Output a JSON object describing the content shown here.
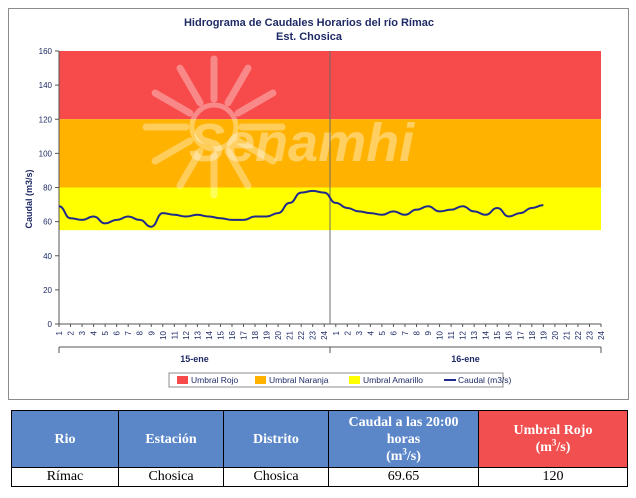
{
  "chart_data": {
    "type": "line",
    "title": "Hidrograma de Caudales Horarios del río Rímac",
    "subtitle": "Est. Chosica",
    "ylabel": "Caudal  (m3/s)",
    "ylim": [
      0,
      160
    ],
    "yticks": [
      0,
      20,
      40,
      60,
      80,
      100,
      120,
      140,
      160
    ],
    "hour_labels": [
      "1",
      "2",
      "3",
      "4",
      "5",
      "6",
      "7",
      "8",
      "9",
      "10",
      "11",
      "12",
      "13",
      "14",
      "15",
      "16",
      "17",
      "18",
      "19",
      "20",
      "21",
      "22",
      "23",
      "24"
    ],
    "days": [
      "15-ene",
      "16-ene"
    ],
    "thresholds": [
      {
        "name": "Umbral Rojo",
        "from": 120,
        "to": 160,
        "color": "#f74a4a"
      },
      {
        "name": "Umbral Naranja",
        "from": 80,
        "to": 120,
        "color": "#ffb300"
      },
      {
        "name": "Umbral Amarillo",
        "from": 55,
        "to": 80,
        "color": "#ffff00"
      }
    ],
    "series": [
      {
        "name": "Caudal (m3/s)",
        "color": "#1f2a8c",
        "values": [
          69,
          62,
          61,
          63,
          59,
          61,
          63,
          61,
          57,
          65,
          64,
          63,
          64,
          63,
          62,
          61,
          61,
          63,
          63,
          65,
          71,
          77,
          78,
          77,
          71,
          68,
          66,
          65,
          64,
          66,
          64,
          67,
          69,
          66,
          67,
          69,
          66,
          64,
          68,
          63,
          65,
          68,
          69.65
        ]
      }
    ],
    "legend": [
      "Umbral Rojo",
      "Umbral Naranja",
      "Umbral Amarillo",
      "Caudal (m3/s)"
    ],
    "legend_position": "bottom",
    "grid": false,
    "watermark": "Senamhi"
  },
  "table": {
    "headers": [
      "Rio",
      "Estación",
      "Distrito",
      "Caudal a las 20:00 horas",
      "Umbral Rojo"
    ],
    "units": [
      "",
      "",
      "",
      "(m3/s)",
      "(m3/s)"
    ],
    "row": [
      "Rímac",
      "Chosica",
      "Chosica",
      "69.65",
      "120"
    ]
  }
}
